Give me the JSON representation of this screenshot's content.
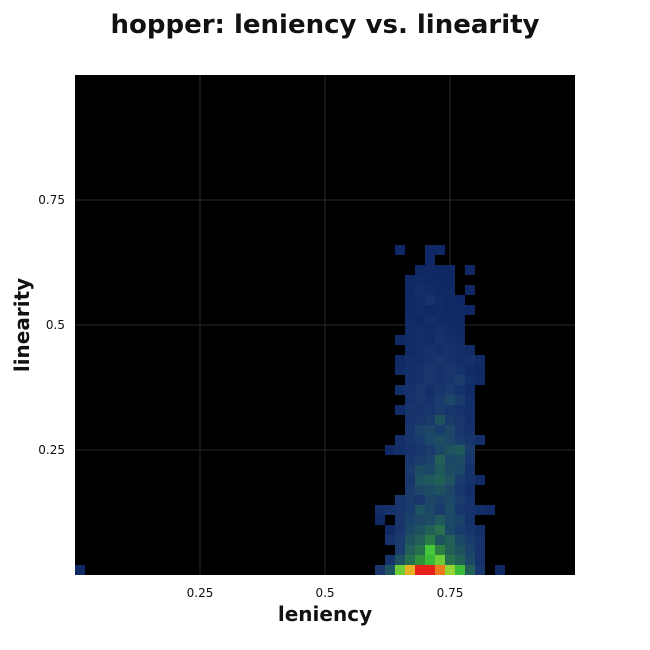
{
  "chart_data": {
    "type": "heatmap",
    "title": "hopper: leniency vs. linearity",
    "xlabel": "leniency",
    "ylabel": "linearity",
    "xlim": [
      0,
      1
    ],
    "ylim": [
      0,
      1
    ],
    "grid": true,
    "bins": 50,
    "xticks": [
      {
        "value": 0.25,
        "label": "0.25"
      },
      {
        "value": 0.5,
        "label": "0.5"
      },
      {
        "value": 0.75,
        "label": "0.75"
      }
    ],
    "yticks": [
      {
        "value": 0.25,
        "label": "0.25"
      },
      {
        "value": 0.5,
        "label": "0.5"
      },
      {
        "value": 0.75,
        "label": "0.75"
      }
    ],
    "colors": {
      "background": "#000000",
      "grid": "#2a2a2a",
      "scale": [
        "#0b2060",
        "#1a3a6e",
        "#1f5a5a",
        "#2e8a3c",
        "#3ec43a",
        "#c8e030",
        "#f0a020",
        "#e8201a"
      ]
    },
    "cells": [
      [
        0.01,
        0.01,
        0.05
      ],
      [
        0.61,
        0.01,
        0.12
      ],
      [
        0.63,
        0.01,
        0.25
      ],
      [
        0.65,
        0.01,
        0.62
      ],
      [
        0.67,
        0.01,
        0.82
      ],
      [
        0.69,
        0.01,
        1.0
      ],
      [
        0.71,
        0.01,
        1.0
      ],
      [
        0.73,
        0.01,
        0.9
      ],
      [
        0.75,
        0.01,
        0.66
      ],
      [
        0.77,
        0.01,
        0.55
      ],
      [
        0.79,
        0.01,
        0.3
      ],
      [
        0.81,
        0.01,
        0.12
      ],
      [
        0.85,
        0.01,
        0.05
      ],
      [
        0.63,
        0.03,
        0.1
      ],
      [
        0.65,
        0.03,
        0.25
      ],
      [
        0.67,
        0.03,
        0.35
      ],
      [
        0.69,
        0.03,
        0.45
      ],
      [
        0.71,
        0.03,
        0.55
      ],
      [
        0.73,
        0.03,
        0.62
      ],
      [
        0.75,
        0.03,
        0.35
      ],
      [
        0.77,
        0.03,
        0.3
      ],
      [
        0.79,
        0.03,
        0.2
      ],
      [
        0.81,
        0.03,
        0.1
      ],
      [
        0.65,
        0.05,
        0.15
      ],
      [
        0.67,
        0.05,
        0.3
      ],
      [
        0.69,
        0.05,
        0.35
      ],
      [
        0.71,
        0.05,
        0.58
      ],
      [
        0.73,
        0.05,
        0.4
      ],
      [
        0.75,
        0.05,
        0.3
      ],
      [
        0.77,
        0.05,
        0.25
      ],
      [
        0.79,
        0.05,
        0.18
      ],
      [
        0.81,
        0.05,
        0.1
      ],
      [
        0.63,
        0.07,
        0.1
      ],
      [
        0.65,
        0.07,
        0.15
      ],
      [
        0.67,
        0.07,
        0.25
      ],
      [
        0.69,
        0.07,
        0.3
      ],
      [
        0.71,
        0.07,
        0.38
      ],
      [
        0.73,
        0.07,
        0.25
      ],
      [
        0.75,
        0.07,
        0.3
      ],
      [
        0.77,
        0.07,
        0.2
      ],
      [
        0.79,
        0.07,
        0.15
      ],
      [
        0.81,
        0.07,
        0.1
      ],
      [
        0.63,
        0.09,
        0.05
      ],
      [
        0.65,
        0.09,
        0.12
      ],
      [
        0.67,
        0.09,
        0.2
      ],
      [
        0.69,
        0.09,
        0.25
      ],
      [
        0.71,
        0.09,
        0.3
      ],
      [
        0.73,
        0.09,
        0.35
      ],
      [
        0.75,
        0.09,
        0.2
      ],
      [
        0.77,
        0.09,
        0.15
      ],
      [
        0.79,
        0.09,
        0.12
      ],
      [
        0.81,
        0.09,
        0.08
      ],
      [
        0.61,
        0.11,
        0.05
      ],
      [
        0.65,
        0.11,
        0.12
      ],
      [
        0.67,
        0.11,
        0.18
      ],
      [
        0.69,
        0.11,
        0.2
      ],
      [
        0.71,
        0.11,
        0.22
      ],
      [
        0.73,
        0.11,
        0.28
      ],
      [
        0.75,
        0.11,
        0.2
      ],
      [
        0.77,
        0.11,
        0.18
      ],
      [
        0.79,
        0.11,
        0.1
      ],
      [
        0.61,
        0.13,
        0.08
      ],
      [
        0.63,
        0.13,
        0.1
      ],
      [
        0.65,
        0.13,
        0.12
      ],
      [
        0.67,
        0.13,
        0.15
      ],
      [
        0.69,
        0.13,
        0.25
      ],
      [
        0.71,
        0.13,
        0.2
      ],
      [
        0.73,
        0.13,
        0.15
      ],
      [
        0.75,
        0.13,
        0.22
      ],
      [
        0.77,
        0.13,
        0.12
      ],
      [
        0.79,
        0.13,
        0.1
      ],
      [
        0.81,
        0.13,
        0.08
      ],
      [
        0.83,
        0.13,
        0.06
      ],
      [
        0.65,
        0.15,
        0.12
      ],
      [
        0.67,
        0.15,
        0.15
      ],
      [
        0.69,
        0.15,
        0.12
      ],
      [
        0.71,
        0.15,
        0.2
      ],
      [
        0.73,
        0.15,
        0.18
      ],
      [
        0.75,
        0.15,
        0.2
      ],
      [
        0.77,
        0.15,
        0.15
      ],
      [
        0.79,
        0.15,
        0.1
      ],
      [
        0.67,
        0.17,
        0.15
      ],
      [
        0.69,
        0.17,
        0.2
      ],
      [
        0.71,
        0.17,
        0.22
      ],
      [
        0.73,
        0.17,
        0.25
      ],
      [
        0.75,
        0.17,
        0.2
      ],
      [
        0.77,
        0.17,
        0.12
      ],
      [
        0.79,
        0.17,
        0.08
      ],
      [
        0.67,
        0.19,
        0.12
      ],
      [
        0.69,
        0.19,
        0.25
      ],
      [
        0.71,
        0.19,
        0.28
      ],
      [
        0.73,
        0.19,
        0.3
      ],
      [
        0.75,
        0.19,
        0.25
      ],
      [
        0.77,
        0.19,
        0.15
      ],
      [
        0.79,
        0.19,
        0.1
      ],
      [
        0.81,
        0.19,
        0.06
      ],
      [
        0.67,
        0.21,
        0.15
      ],
      [
        0.69,
        0.21,
        0.22
      ],
      [
        0.71,
        0.21,
        0.2
      ],
      [
        0.73,
        0.21,
        0.28
      ],
      [
        0.75,
        0.21,
        0.22
      ],
      [
        0.77,
        0.21,
        0.2
      ],
      [
        0.79,
        0.21,
        0.1
      ],
      [
        0.67,
        0.23,
        0.12
      ],
      [
        0.69,
        0.23,
        0.15
      ],
      [
        0.71,
        0.23,
        0.18
      ],
      [
        0.73,
        0.23,
        0.3
      ],
      [
        0.75,
        0.23,
        0.2
      ],
      [
        0.77,
        0.23,
        0.22
      ],
      [
        0.79,
        0.23,
        0.12
      ],
      [
        0.63,
        0.25,
        0.05
      ],
      [
        0.65,
        0.25,
        0.08
      ],
      [
        0.67,
        0.25,
        0.1
      ],
      [
        0.69,
        0.25,
        0.12
      ],
      [
        0.71,
        0.25,
        0.15
      ],
      [
        0.73,
        0.25,
        0.2
      ],
      [
        0.75,
        0.25,
        0.25
      ],
      [
        0.77,
        0.25,
        0.28
      ],
      [
        0.79,
        0.25,
        0.15
      ],
      [
        0.65,
        0.27,
        0.08
      ],
      [
        0.67,
        0.27,
        0.12
      ],
      [
        0.69,
        0.27,
        0.15
      ],
      [
        0.71,
        0.27,
        0.2
      ],
      [
        0.73,
        0.27,
        0.22
      ],
      [
        0.75,
        0.27,
        0.2
      ],
      [
        0.77,
        0.27,
        0.15
      ],
      [
        0.79,
        0.27,
        0.12
      ],
      [
        0.81,
        0.27,
        0.08
      ],
      [
        0.67,
        0.29,
        0.12
      ],
      [
        0.69,
        0.29,
        0.18
      ],
      [
        0.71,
        0.29,
        0.2
      ],
      [
        0.73,
        0.29,
        0.15
      ],
      [
        0.75,
        0.29,
        0.2
      ],
      [
        0.77,
        0.29,
        0.12
      ],
      [
        0.79,
        0.29,
        0.1
      ],
      [
        0.67,
        0.31,
        0.1
      ],
      [
        0.69,
        0.31,
        0.12
      ],
      [
        0.71,
        0.31,
        0.15
      ],
      [
        0.73,
        0.31,
        0.25
      ],
      [
        0.75,
        0.31,
        0.15
      ],
      [
        0.77,
        0.31,
        0.12
      ],
      [
        0.79,
        0.31,
        0.08
      ],
      [
        0.65,
        0.33,
        0.06
      ],
      [
        0.67,
        0.33,
        0.12
      ],
      [
        0.69,
        0.33,
        0.1
      ],
      [
        0.71,
        0.33,
        0.12
      ],
      [
        0.73,
        0.33,
        0.15
      ],
      [
        0.75,
        0.33,
        0.12
      ],
      [
        0.77,
        0.33,
        0.1
      ],
      [
        0.79,
        0.33,
        0.08
      ],
      [
        0.67,
        0.35,
        0.1
      ],
      [
        0.69,
        0.35,
        0.12
      ],
      [
        0.71,
        0.35,
        0.1
      ],
      [
        0.73,
        0.35,
        0.15
      ],
      [
        0.75,
        0.35,
        0.2
      ],
      [
        0.77,
        0.35,
        0.15
      ],
      [
        0.79,
        0.35,
        0.08
      ],
      [
        0.65,
        0.37,
        0.08
      ],
      [
        0.67,
        0.37,
        0.1
      ],
      [
        0.69,
        0.37,
        0.12
      ],
      [
        0.71,
        0.37,
        0.08
      ],
      [
        0.73,
        0.37,
        0.12
      ],
      [
        0.75,
        0.37,
        0.15
      ],
      [
        0.77,
        0.37,
        0.1
      ],
      [
        0.79,
        0.37,
        0.06
      ],
      [
        0.67,
        0.39,
        0.08
      ],
      [
        0.69,
        0.39,
        0.1
      ],
      [
        0.71,
        0.39,
        0.12
      ],
      [
        0.73,
        0.39,
        0.1
      ],
      [
        0.75,
        0.39,
        0.12
      ],
      [
        0.77,
        0.39,
        0.15
      ],
      [
        0.79,
        0.39,
        0.08
      ],
      [
        0.81,
        0.39,
        0.06
      ],
      [
        0.65,
        0.41,
        0.06
      ],
      [
        0.67,
        0.41,
        0.08
      ],
      [
        0.69,
        0.41,
        0.1
      ],
      [
        0.71,
        0.41,
        0.12
      ],
      [
        0.73,
        0.41,
        0.1
      ],
      [
        0.75,
        0.41,
        0.12
      ],
      [
        0.77,
        0.41,
        0.1
      ],
      [
        0.79,
        0.41,
        0.06
      ],
      [
        0.81,
        0.41,
        0.05
      ],
      [
        0.65,
        0.43,
        0.05
      ],
      [
        0.67,
        0.43,
        0.08
      ],
      [
        0.69,
        0.43,
        0.08
      ],
      [
        0.71,
        0.43,
        0.1
      ],
      [
        0.73,
        0.43,
        0.12
      ],
      [
        0.75,
        0.43,
        0.1
      ],
      [
        0.77,
        0.43,
        0.08
      ],
      [
        0.79,
        0.43,
        0.1
      ],
      [
        0.81,
        0.43,
        0.06
      ],
      [
        0.67,
        0.45,
        0.06
      ],
      [
        0.69,
        0.45,
        0.08
      ],
      [
        0.71,
        0.45,
        0.1
      ],
      [
        0.73,
        0.45,
        0.08
      ],
      [
        0.75,
        0.45,
        0.1
      ],
      [
        0.77,
        0.45,
        0.08
      ],
      [
        0.79,
        0.45,
        0.06
      ],
      [
        0.65,
        0.47,
        0.05
      ],
      [
        0.67,
        0.47,
        0.06
      ],
      [
        0.69,
        0.47,
        0.08
      ],
      [
        0.71,
        0.47,
        0.06
      ],
      [
        0.73,
        0.47,
        0.1
      ],
      [
        0.75,
        0.47,
        0.08
      ],
      [
        0.77,
        0.47,
        0.06
      ],
      [
        0.67,
        0.49,
        0.06
      ],
      [
        0.69,
        0.49,
        0.08
      ],
      [
        0.71,
        0.49,
        0.06
      ],
      [
        0.73,
        0.49,
        0.08
      ],
      [
        0.75,
        0.49,
        0.06
      ],
      [
        0.77,
        0.49,
        0.05
      ],
      [
        0.67,
        0.51,
        0.06
      ],
      [
        0.69,
        0.51,
        0.05
      ],
      [
        0.71,
        0.51,
        0.08
      ],
      [
        0.73,
        0.51,
        0.06
      ],
      [
        0.75,
        0.51,
        0.06
      ],
      [
        0.77,
        0.51,
        0.05
      ],
      [
        0.67,
        0.53,
        0.05
      ],
      [
        0.69,
        0.53,
        0.06
      ],
      [
        0.71,
        0.53,
        0.05
      ],
      [
        0.73,
        0.53,
        0.06
      ],
      [
        0.75,
        0.53,
        0.05
      ],
      [
        0.77,
        0.53,
        0.05
      ],
      [
        0.79,
        0.53,
        0.04
      ],
      [
        0.67,
        0.55,
        0.05
      ],
      [
        0.69,
        0.55,
        0.06
      ],
      [
        0.71,
        0.55,
        0.1
      ],
      [
        0.73,
        0.55,
        0.06
      ],
      [
        0.75,
        0.55,
        0.05
      ],
      [
        0.77,
        0.55,
        0.04
      ],
      [
        0.67,
        0.57,
        0.05
      ],
      [
        0.69,
        0.57,
        0.08
      ],
      [
        0.71,
        0.57,
        0.06
      ],
      [
        0.73,
        0.57,
        0.05
      ],
      [
        0.75,
        0.57,
        0.05
      ],
      [
        0.79,
        0.57,
        0.04
      ],
      [
        0.67,
        0.59,
        0.05
      ],
      [
        0.69,
        0.59,
        0.06
      ],
      [
        0.71,
        0.59,
        0.05
      ],
      [
        0.73,
        0.59,
        0.05
      ],
      [
        0.75,
        0.59,
        0.04
      ],
      [
        0.69,
        0.61,
        0.05
      ],
      [
        0.71,
        0.61,
        0.05
      ],
      [
        0.73,
        0.61,
        0.04
      ],
      [
        0.75,
        0.61,
        0.05
      ],
      [
        0.79,
        0.61,
        0.04
      ],
      [
        0.65,
        0.65,
        0.04
      ],
      [
        0.71,
        0.63,
        0.04
      ],
      [
        0.71,
        0.65,
        0.04
      ],
      [
        0.73,
        0.65,
        0.04
      ]
    ]
  }
}
